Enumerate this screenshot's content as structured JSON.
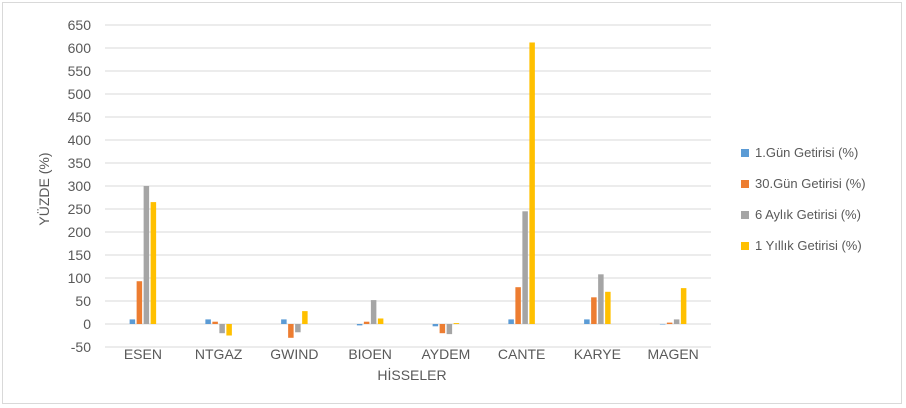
{
  "chart_data": {
    "type": "bar",
    "title": "",
    "xlabel": "HİSSELER",
    "ylabel": "YÜZDE (%)",
    "ylim": [
      -50,
      650
    ],
    "ytick_step": 50,
    "grid": true,
    "legend_position": "right",
    "categories": [
      "ESEN",
      "NTGAZ",
      "GWIND",
      "BIOEN",
      "AYDEM",
      "CANTE",
      "KARYE",
      "MAGEN"
    ],
    "series": [
      {
        "name": "1.Gün Getirisi (%)",
        "color": "#5b9bd5",
        "values": [
          10,
          10,
          10,
          -3,
          -5,
          10,
          10,
          0
        ]
      },
      {
        "name": "30.Gün Getirisi (%)",
        "color": "#ed7d31",
        "values": [
          93,
          5,
          -30,
          5,
          -20,
          80,
          58,
          3
        ]
      },
      {
        "name": "6 Aylık Getirisi (%)",
        "color": "#a5a5a5",
        "values": [
          300,
          -20,
          -18,
          52,
          -22,
          245,
          108,
          10
        ]
      },
      {
        "name": "1 Yıllık Getirisi (%)",
        "color": "#ffc000",
        "values": [
          265,
          -25,
          28,
          12,
          2,
          612,
          70,
          78
        ]
      }
    ]
  }
}
